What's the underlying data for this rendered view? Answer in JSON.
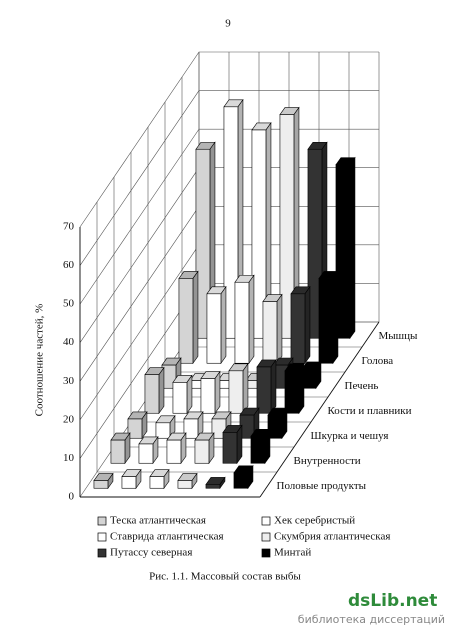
{
  "page_number": "9",
  "chart_data": {
    "type": "bar3d",
    "y_label": "Соотношение частей, %",
    "categories": [
      "Половые продукты",
      "Внутренности",
      "Шкурка и чешуя",
      "Кости и плавники",
      "Печень",
      "Голова",
      "Мышцы"
    ],
    "series": [
      {
        "name": "Теска атлантическая",
        "color": "#d4d4d4",
        "values": [
          2,
          6,
          5,
          10,
          6,
          22,
          49
        ]
      },
      {
        "name": "Хек серебристый",
        "color": "#ffffff",
        "values": [
          3,
          5,
          4,
          8,
          2,
          18,
          60
        ]
      },
      {
        "name": "Ставрида атлантическая",
        "color": "#ffffff",
        "values": [
          3,
          6,
          5,
          9,
          2,
          21,
          54
        ]
      },
      {
        "name": "Скумбрия атлантическая",
        "color": "#eeeeee",
        "values": [
          2,
          6,
          5,
          11,
          2,
          16,
          58
        ]
      },
      {
        "name": "Путассу северная",
        "color": "#333333",
        "values": [
          1,
          8,
          6,
          12,
          6,
          18,
          49
        ]
      },
      {
        "name": "Минтай",
        "color": "#000000",
        "values": [
          4,
          7,
          6,
          11,
          5,
          22,
          45
        ]
      }
    ],
    "ylim": [
      0,
      70
    ],
    "yticks": [
      0,
      10,
      20,
      30,
      40,
      50,
      60,
      70
    ],
    "grid": true
  },
  "caption": "Рис. 1.1. Массовый состав выбы",
  "watermark": {
    "site": "dsLib.net",
    "subtitle": "библиотека диссертаций"
  }
}
